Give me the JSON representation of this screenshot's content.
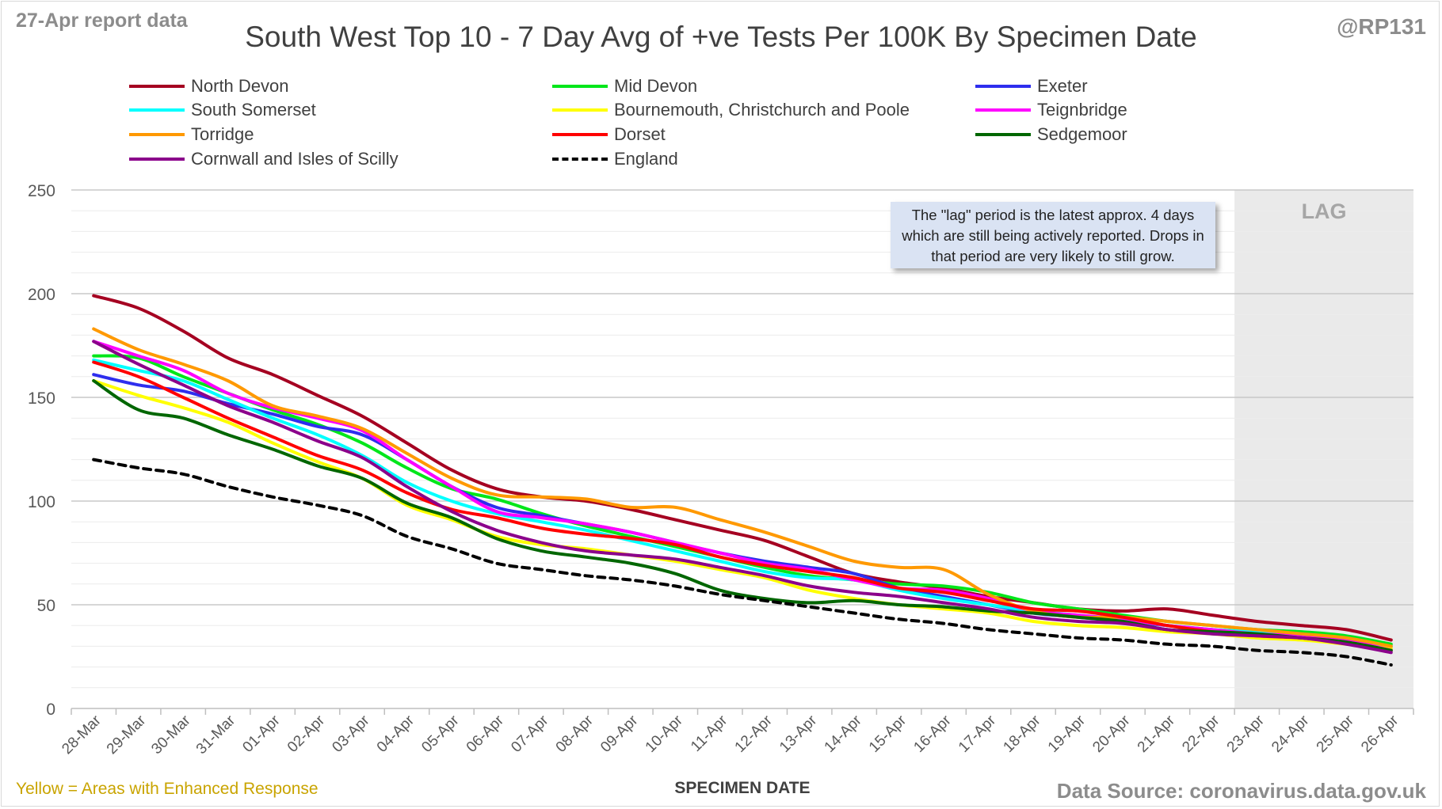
{
  "header": {
    "report_date": "27-Apr report data",
    "handle": "@RP131",
    "title": "South West Top 10 - 7 Day Avg of +ve Tests Per 100K By Specimen Date"
  },
  "annotation": {
    "lag_label": "LAG",
    "lag_note": "The \"lag\" period is the latest approx. 4 days which are still being actively reported. Drops in that period are very likely to still grow."
  },
  "footer": {
    "footnote": "Yellow = Areas with Enhanced Response",
    "source": "Data Source: coronavirus.data.gov.uk"
  },
  "chart_data": {
    "type": "line",
    "title": "South West Top 10 - 7 Day Avg of +ve Tests Per 100K By Specimen Date",
    "xlabel": "SPECIMEN DATE",
    "ylabel": "",
    "ylim": [
      0,
      250
    ],
    "yticks": [
      0,
      50,
      100,
      150,
      200,
      250
    ],
    "grid": "horizontal",
    "legend_position": "top",
    "lag_start": "23-Apr",
    "categories": [
      "28-Mar",
      "29-Mar",
      "30-Mar",
      "31-Mar",
      "01-Apr",
      "02-Apr",
      "03-Apr",
      "04-Apr",
      "05-Apr",
      "06-Apr",
      "07-Apr",
      "08-Apr",
      "09-Apr",
      "10-Apr",
      "11-Apr",
      "12-Apr",
      "13-Apr",
      "14-Apr",
      "15-Apr",
      "16-Apr",
      "17-Apr",
      "18-Apr",
      "19-Apr",
      "20-Apr",
      "21-Apr",
      "22-Apr",
      "23-Apr",
      "24-Apr",
      "25-Apr",
      "26-Apr"
    ],
    "series": [
      {
        "name": "North Devon",
        "color": "#a50021",
        "dash": false,
        "values": [
          199,
          193,
          182,
          169,
          161,
          151,
          141,
          128,
          115,
          106,
          102,
          100,
          96,
          91,
          86,
          81,
          73,
          65,
          61,
          58,
          54,
          51,
          48,
          47,
          48,
          45,
          42,
          40,
          38,
          33
        ]
      },
      {
        "name": "Mid Devon",
        "color": "#00e61a",
        "dash": false,
        "values": [
          170,
          169,
          160,
          152,
          144,
          137,
          128,
          116,
          106,
          101,
          94,
          88,
          83,
          78,
          73,
          68,
          64,
          62,
          60,
          59,
          56,
          51,
          48,
          45,
          42,
          40,
          38,
          37,
          35,
          31
        ]
      },
      {
        "name": "Exeter",
        "color": "#2e2eee",
        "dash": false,
        "values": [
          161,
          156,
          153,
          147,
          142,
          136,
          132,
          120,
          107,
          97,
          93,
          89,
          85,
          80,
          75,
          71,
          68,
          65,
          58,
          54,
          50,
          46,
          44,
          42,
          40,
          38,
          36,
          35,
          33,
          30
        ]
      },
      {
        "name": "South Somerset",
        "color": "#00ffff",
        "dash": false,
        "values": [
          168,
          163,
          158,
          149,
          140,
          132,
          122,
          109,
          100,
          94,
          90,
          86,
          81,
          76,
          71,
          66,
          63,
          62,
          57,
          53,
          50,
          47,
          45,
          43,
          40,
          38,
          37,
          35,
          33,
          29
        ]
      },
      {
        "name": "Bournemouth, Christchurch and Poole",
        "color": "#ffff00",
        "dash": false,
        "values": [
          158,
          151,
          145,
          138,
          128,
          119,
          111,
          98,
          91,
          83,
          79,
          77,
          74,
          71,
          67,
          63,
          57,
          53,
          50,
          48,
          46,
          42,
          40,
          39,
          37,
          36,
          34,
          33,
          31,
          29
        ]
      },
      {
        "name": "Teignbridge",
        "color": "#ff00ff",
        "dash": false,
        "values": [
          177,
          170,
          163,
          152,
          145,
          140,
          134,
          120,
          107,
          95,
          92,
          89,
          85,
          80,
          75,
          70,
          67,
          62,
          58,
          57,
          53,
          47,
          45,
          43,
          40,
          38,
          36,
          35,
          33,
          28
        ]
      },
      {
        "name": "Torridge",
        "color": "#ff9900",
        "dash": false,
        "values": [
          183,
          173,
          166,
          158,
          146,
          141,
          135,
          123,
          111,
          103,
          102,
          101,
          97,
          97,
          91,
          85,
          78,
          71,
          68,
          67,
          55,
          47,
          44,
          44,
          42,
          40,
          38,
          36,
          34,
          30
        ]
      },
      {
        "name": "Dorset",
        "color": "#ff0000",
        "dash": false,
        "values": [
          167,
          160,
          150,
          140,
          131,
          122,
          115,
          104,
          96,
          92,
          87,
          84,
          82,
          79,
          73,
          69,
          66,
          63,
          58,
          56,
          52,
          48,
          47,
          44,
          40,
          37,
          35,
          34,
          32,
          28
        ]
      },
      {
        "name": "Sedgemoor",
        "color": "#006600",
        "dash": false,
        "values": [
          158,
          144,
          140,
          132,
          125,
          117,
          111,
          99,
          92,
          82,
          76,
          73,
          70,
          65,
          57,
          53,
          51,
          52,
          50,
          49,
          47,
          46,
          44,
          42,
          38,
          37,
          36,
          34,
          32,
          28
        ]
      },
      {
        "name": "Cornwall and Isles of Scilly",
        "color": "#8b008b",
        "dash": false,
        "values": [
          177,
          166,
          156,
          146,
          138,
          129,
          121,
          107,
          95,
          86,
          80,
          76,
          74,
          72,
          68,
          64,
          59,
          56,
          54,
          51,
          48,
          44,
          42,
          41,
          38,
          36,
          35,
          34,
          31,
          27
        ]
      },
      {
        "name": "England",
        "color": "#000000",
        "dash": true,
        "values": [
          120,
          116,
          113,
          107,
          102,
          98,
          93,
          83,
          77,
          70,
          67,
          64,
          62,
          59,
          55,
          52,
          49,
          46,
          43,
          41,
          38,
          36,
          34,
          33,
          31,
          30,
          28,
          27,
          25,
          21
        ]
      }
    ]
  }
}
